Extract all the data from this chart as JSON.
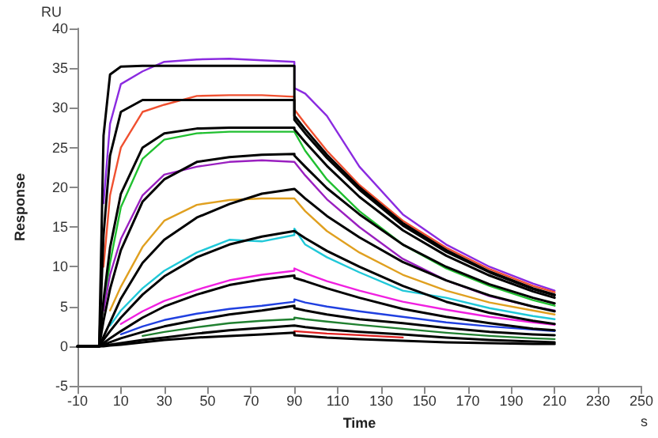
{
  "chart_data": {
    "type": "line",
    "xlabel": "Time",
    "ylabel": "Response",
    "annotations": [
      "RU",
      "s"
    ],
    "xlim": [
      -10,
      250
    ],
    "xticks": [
      -10,
      10,
      30,
      50,
      70,
      90,
      110,
      130,
      150,
      170,
      190,
      210,
      230,
      250
    ],
    "ylim": [
      -5,
      40
    ],
    "yticks": [
      -5,
      0,
      5,
      10,
      15,
      20,
      25,
      30,
      35,
      40
    ],
    "marker": "none",
    "x": [
      -10,
      0,
      2,
      5,
      10,
      20,
      30,
      45,
      60,
      75,
      90,
      90,
      95,
      105,
      120,
      140,
      160,
      180,
      200,
      210
    ],
    "series": [
      {
        "color": "#8b2be0",
        "values": [
          null,
          null,
          18,
          28,
          33,
          34.6,
          35.8,
          36.1,
          36.2,
          36,
          35.8,
          32.5,
          31.8,
          29,
          22.6,
          16.6,
          12.8,
          10,
          7.9,
          7
        ]
      },
      {
        "color": "#f05030",
        "values": [
          null,
          null,
          10,
          19,
          25,
          29.5,
          30.4,
          31.5,
          31.6,
          31.6,
          31.4,
          29.8,
          28,
          24.6,
          20.3,
          15.8,
          12.4,
          9.7,
          7.6,
          6.8
        ]
      },
      {
        "color": "#20c030",
        "values": [
          null,
          null,
          5,
          10.5,
          17.5,
          23.6,
          26,
          26.8,
          27,
          27,
          27,
          27,
          24.6,
          21,
          17,
          12.8,
          9.8,
          7.6,
          5.8,
          5.1
        ]
      },
      {
        "color": "#9a20c0",
        "values": [
          null,
          null,
          4.5,
          9,
          13.5,
          19,
          21.6,
          22.6,
          23.2,
          23.4,
          23.2,
          23.2,
          21.5,
          18.5,
          15,
          11,
          8.3,
          6.3,
          5,
          4.5
        ]
      },
      {
        "color": "#e0a020",
        "values": [
          null,
          null,
          null,
          4.5,
          7.5,
          12.5,
          15.8,
          17.8,
          18.4,
          18.6,
          18.6,
          18.6,
          17,
          14.5,
          11.8,
          9,
          7,
          5.5,
          4.5,
          4
        ]
      },
      {
        "color": "#20c8d8",
        "values": [
          null,
          null,
          null,
          2.6,
          4.5,
          7.3,
          9.5,
          11.8,
          13.4,
          13.2,
          14,
          14.8,
          12.8,
          11.2,
          9.3,
          7,
          6.1,
          4.8,
          3.8,
          3.4
        ]
      },
      {
        "color": "#f020e0",
        "values": [
          null,
          null,
          null,
          null,
          2.8,
          4.4,
          5.7,
          7.1,
          8.3,
          9,
          9.5,
          9.8,
          9.2,
          8.2,
          7,
          5.6,
          4.6,
          3.7,
          3,
          2.7
        ]
      },
      {
        "color": "#2040e0",
        "values": [
          null,
          null,
          null,
          null,
          1.5,
          2.5,
          3.3,
          4.1,
          4.7,
          5.1,
          5.6,
          5.9,
          5.5,
          5,
          4.4,
          3.7,
          3,
          2.5,
          2.1,
          1.9
        ]
      },
      {
        "color": "#208030",
        "values": [
          null,
          null,
          null,
          null,
          null,
          1.3,
          1.8,
          2.4,
          2.9,
          3.2,
          3.4,
          3.6,
          3.4,
          3.1,
          2.7,
          2.2,
          1.7,
          1.3,
          1,
          0.9
        ]
      },
      {
        "color": "#e02020",
        "values": [
          null,
          null,
          null,
          null,
          null,
          null,
          null,
          null,
          null,
          null,
          null,
          1.9,
          1.8,
          1.6,
          1.4,
          1.1,
          null,
          null,
          null,
          null
        ]
      },
      {
        "color": "#000000",
        "values": [
          0,
          0,
          26.5,
          34.2,
          35.2,
          35.3,
          35.3,
          35.3,
          35.3,
          35.3,
          35.3,
          29,
          27.3,
          24.1,
          20,
          15.5,
          12.1,
          9.4,
          7.3,
          6.5
        ]
      },
      {
        "color": "#000000",
        "values": [
          0,
          0,
          14,
          24,
          29.5,
          31,
          31,
          31,
          31,
          31,
          31,
          28.5,
          26.8,
          23.7,
          19.7,
          15.2,
          11.9,
          9.3,
          7.2,
          6.4
        ]
      },
      {
        "color": "#000000",
        "values": [
          0,
          0,
          5.8,
          12.4,
          19.2,
          25,
          26.8,
          27.4,
          27.5,
          27.5,
          27.5,
          27.3,
          25.7,
          22.7,
          18.8,
          14.6,
          11.4,
          8.9,
          6.9,
          6.1
        ]
      },
      {
        "color": "#000000",
        "values": [
          0,
          0,
          3.2,
          7.2,
          12.1,
          18.2,
          21,
          23.2,
          23.8,
          24.1,
          24.2,
          24,
          22.6,
          19.9,
          16.6,
          12.8,
          10,
          7.8,
          6.1,
          5.4
        ]
      },
      {
        "color": "#000000",
        "values": [
          0,
          0,
          1.2,
          3,
          6,
          10.5,
          13.4,
          16.2,
          17.9,
          19.2,
          19.8,
          19.8,
          18.6,
          16.4,
          13.7,
          10.6,
          8.3,
          6.4,
          5,
          4.4
        ]
      },
      {
        "color": "#000000",
        "values": [
          0,
          0,
          0.8,
          1.9,
          3.6,
          6.5,
          8.8,
          11.2,
          12.8,
          13.8,
          14.5,
          14.5,
          13.6,
          12,
          10,
          7.6,
          5.6,
          4.2,
          3.2,
          2.8
        ]
      },
      {
        "color": "#000000",
        "values": [
          0,
          0,
          0.4,
          1,
          1.9,
          3.6,
          5,
          6.5,
          7.7,
          8.4,
          8.9,
          8.6,
          8.2,
          7.3,
          6.1,
          4.7,
          3.7,
          2.9,
          2.2,
          2
        ]
      },
      {
        "color": "#000000",
        "values": [
          0,
          0,
          0.2,
          0.5,
          1,
          1.8,
          2.5,
          3.3,
          4,
          4.5,
          5.1,
          4.8,
          4.5,
          4,
          3.4,
          2.9,
          2.3,
          1.8,
          1.5,
          1.4
        ]
      },
      {
        "color": "#000000",
        "values": [
          0,
          0,
          0.1,
          0.2,
          0.4,
          0.8,
          1.1,
          1.6,
          2,
          2.3,
          2.6,
          2.5,
          2.4,
          2.1,
          1.8,
          1.5,
          1.1,
          0.8,
          0.6,
          0.5
        ]
      },
      {
        "color": "#000000",
        "values": [
          0,
          0,
          0,
          0.1,
          0.2,
          0.5,
          0.8,
          1.1,
          1.3,
          1.5,
          1.7,
          1.4,
          1.3,
          1.1,
          0.9,
          0.7,
          0.5,
          0.4,
          0.3,
          0.3
        ]
      }
    ]
  }
}
